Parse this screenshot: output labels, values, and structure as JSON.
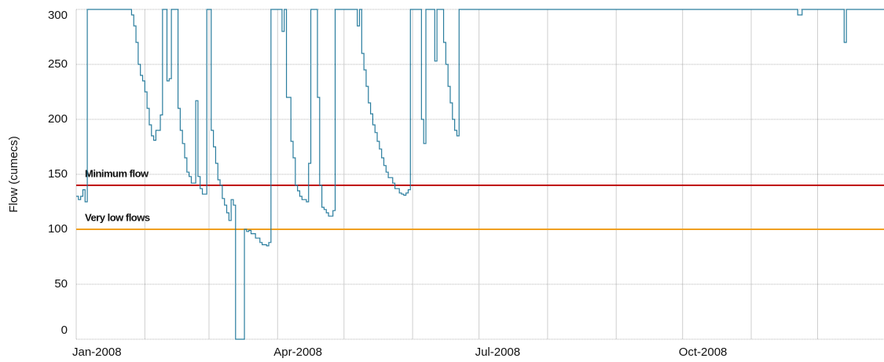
{
  "chart_data": {
    "type": "step-line",
    "y_label": "Flow (cumecs)",
    "xlim": [
      0,
      365
    ],
    "xticks": [
      {
        "value": 0,
        "label": "Jan-2008"
      },
      {
        "value": 91,
        "label": "Apr-2008"
      },
      {
        "value": 182,
        "label": "Jul-2008"
      },
      {
        "value": 274,
        "label": "Oct-2008"
      }
    ],
    "x_minor_grid": [
      31,
      60,
      121,
      152,
      213,
      244,
      305,
      335
    ],
    "ylim": [
      0,
      300
    ],
    "yticks": [
      0,
      50,
      100,
      150,
      200,
      250,
      300
    ],
    "grid": true,
    "reference_lines": [
      {
        "label": "Minimum flow",
        "value": 140,
        "color": "#c00000"
      },
      {
        "label": "Very low flows",
        "value": 100,
        "color": "#f0a020"
      }
    ],
    "series": [
      {
        "color": "#2a7d9e",
        "x": [
          0,
          1,
          2,
          3,
          4,
          5,
          25,
          26,
          27,
          28,
          29,
          30,
          31,
          32,
          33,
          34,
          35,
          36,
          38,
          39,
          41,
          42,
          43,
          46,
          47,
          48,
          49,
          50,
          51,
          52,
          54,
          55,
          56,
          57,
          59,
          61,
          62,
          63,
          64,
          65,
          66,
          67,
          68,
          69,
          70,
          71,
          72,
          76,
          77,
          78,
          79,
          81,
          83,
          84,
          86,
          87,
          88,
          93,
          94,
          95,
          97,
          98,
          99,
          100,
          101,
          102,
          104,
          105,
          106,
          109,
          110,
          111,
          112,
          113,
          114,
          116,
          117,
          127,
          128,
          129,
          130,
          131,
          132,
          133,
          134,
          135,
          136,
          137,
          138,
          139,
          140,
          141,
          143,
          144,
          146,
          147,
          148,
          149,
          150,
          151,
          156,
          157,
          158,
          162,
          163,
          166,
          167,
          168,
          169,
          170,
          171,
          172,
          173,
          326,
          328,
          347,
          348,
          365
        ],
        "values": [
          130,
          127,
          130,
          136,
          125,
          300,
          295,
          285,
          270,
          250,
          240,
          235,
          225,
          210,
          195,
          185,
          181,
          190,
          204,
          300,
          235,
          237,
          300,
          210,
          190,
          178,
          165,
          152,
          148,
          142,
          217,
          148,
          137,
          132,
          300,
          190,
          175,
          160,
          145,
          140,
          128,
          122,
          115,
          108,
          127,
          122,
          0,
          100,
          98,
          99,
          96,
          92,
          88,
          86,
          85,
          88,
          300,
          280,
          300,
          220,
          180,
          165,
          140,
          135,
          130,
          127,
          125,
          160,
          300,
          220,
          140,
          120,
          118,
          115,
          112,
          117,
          300,
          285,
          300,
          260,
          245,
          230,
          215,
          205,
          195,
          188,
          180,
          173,
          165,
          158,
          152,
          147,
          142,
          137,
          133,
          132,
          131,
          133,
          136,
          300,
          200,
          178,
          300,
          253,
          300,
          270,
          250,
          230,
          215,
          200,
          190,
          185,
          300,
          295,
          300,
          270,
          300,
          300
        ]
      }
    ]
  }
}
